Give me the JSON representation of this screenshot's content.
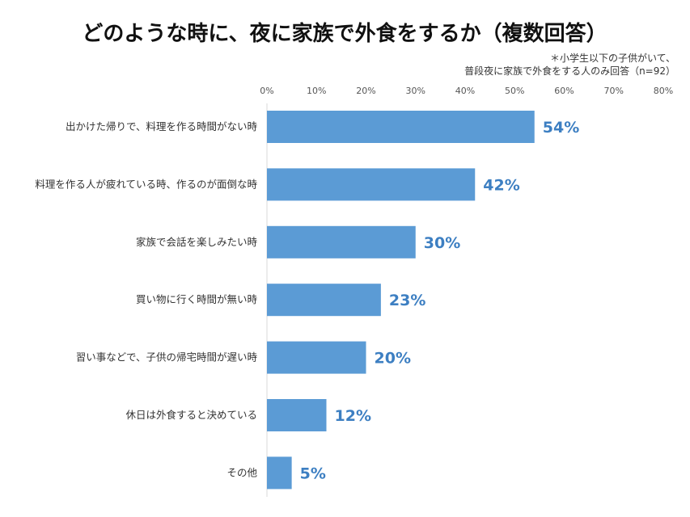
{
  "chart_data": {
    "type": "bar",
    "orientation": "horizontal",
    "title": "どのような時に、夜に家族で外食をするか（複数回答）",
    "note": [
      "＊小学生以下の子供がいて、",
      "普段夜に家族で外食をする人のみ回答（n=92）"
    ],
    "categories": [
      "出かけた帰りで、料理を作る時間がない時",
      "料理を作る人が疲れている時、作るのが面倒な時",
      "家族で会話を楽しみたい時",
      "買い物に行く時間が無い時",
      "習い事などで、子供の帰宅時間が遅い時",
      "休日は外食すると決めている",
      "その他"
    ],
    "values": [
      54,
      42,
      30,
      23,
      20,
      12,
      5
    ],
    "value_labels": [
      "54%",
      "42%",
      "30%",
      "23%",
      "20%",
      "12%",
      "5%"
    ],
    "xlim": [
      0,
      80
    ],
    "ticks": [
      0,
      10,
      20,
      30,
      40,
      50,
      60,
      70,
      80
    ],
    "tick_labels": [
      "0%",
      "10%",
      "20%",
      "30%",
      "40%",
      "50%",
      "60%",
      "70%",
      "80%"
    ],
    "grid": false,
    "bar_color": "#5b9bd5",
    "label_color": "#3d7fc2"
  }
}
